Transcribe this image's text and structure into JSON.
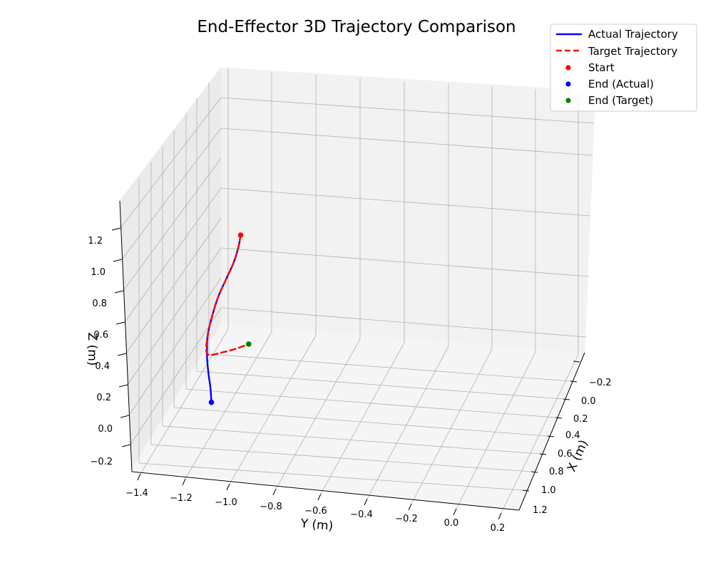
{
  "chart_data": {
    "type": "line3d",
    "title": "End-Effector 3D Trajectory Comparison",
    "xlabel": "X (m)",
    "ylabel": "Y (m)",
    "zlabel": "Z (m)",
    "x_ticks": [
      "−0.2",
      "0.0",
      "0.2",
      "0.4",
      "0.6",
      "0.8",
      "1.0",
      "1.2"
    ],
    "y_ticks": [
      "−1.4",
      "−1.2",
      "−1.0",
      "−0.8",
      "−0.6",
      "−0.4",
      "−0.2",
      "0.0",
      "0.2"
    ],
    "z_ticks": [
      "−0.2",
      "0.0",
      "0.2",
      "0.4",
      "0.6",
      "0.8",
      "1.0",
      "1.2"
    ],
    "xlim": [
      -0.3,
      1.3
    ],
    "ylim": [
      -1.45,
      0.25
    ],
    "zlim": [
      -0.3,
      1.35
    ],
    "grid": true,
    "legend_position": "top-right",
    "series": [
      {
        "name": "Actual Trajectory",
        "style": "solid",
        "color": "#0000ff",
        "points": [
          [
            0.3,
            -0.5,
            0.8
          ],
          [
            0.31,
            -0.51,
            0.72
          ],
          [
            0.33,
            -0.53,
            0.62
          ],
          [
            0.36,
            -0.56,
            0.52
          ],
          [
            0.4,
            -0.59,
            0.42
          ],
          [
            0.45,
            -0.61,
            0.32
          ],
          [
            0.52,
            -0.62,
            0.22
          ],
          [
            0.59,
            -0.61,
            0.13
          ],
          [
            0.66,
            -0.59,
            0.06
          ],
          [
            0.72,
            -0.57,
            0.01
          ],
          [
            0.8,
            -0.55,
            -0.03
          ]
        ]
      },
      {
        "name": "Target Trajectory",
        "style": "dashed",
        "color": "#ff0000",
        "points": [
          [
            0.3,
            -0.5,
            0.8
          ],
          [
            0.31,
            -0.51,
            0.72
          ],
          [
            0.33,
            -0.53,
            0.62
          ],
          [
            0.36,
            -0.56,
            0.52
          ],
          [
            0.4,
            -0.59,
            0.42
          ],
          [
            0.45,
            -0.61,
            0.32
          ],
          [
            0.52,
            -0.62,
            0.22
          ],
          [
            0.58,
            -0.61,
            0.14
          ],
          [
            0.58,
            -0.54,
            0.16
          ],
          [
            0.58,
            -0.48,
            0.19
          ],
          [
            0.58,
            -0.42,
            0.23
          ]
        ]
      }
    ],
    "markers": [
      {
        "name": "Start",
        "color": "#ff0000",
        "point": [
          0.3,
          -0.5,
          0.8
        ]
      },
      {
        "name": "End (Actual)",
        "color": "#0000ff",
        "point": [
          0.8,
          -0.55,
          -0.03
        ]
      },
      {
        "name": "End (Target)",
        "color": "#008000",
        "point": [
          0.58,
          -0.42,
          0.23
        ]
      }
    ]
  }
}
